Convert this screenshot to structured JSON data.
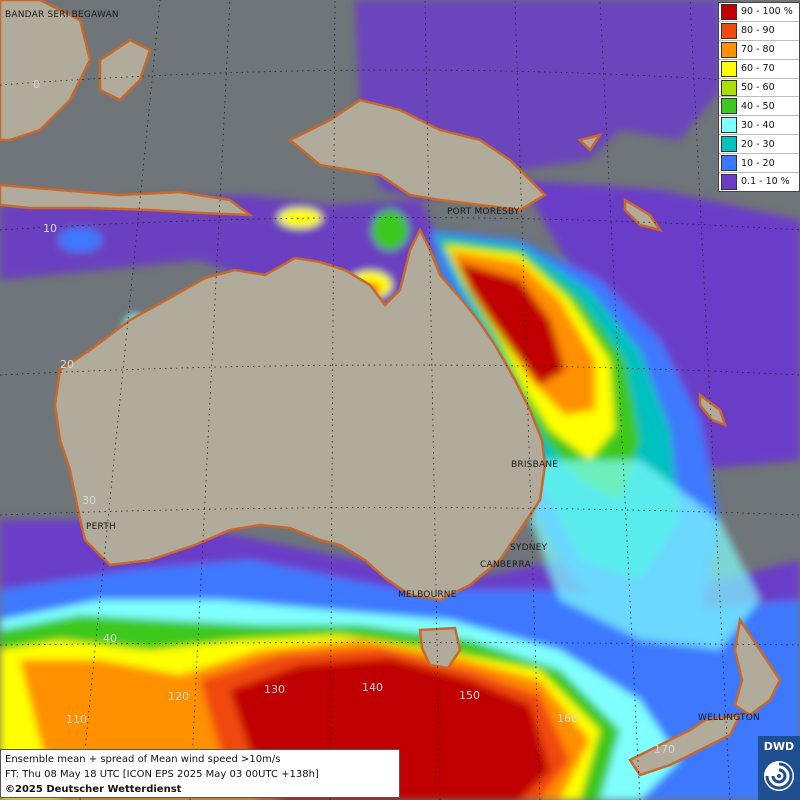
{
  "colors": {
    "ocean": "#6f7579",
    "land": "#b0ab9a",
    "coast": "#c8682a",
    "bins": [
      "#c00000",
      "#e83410",
      "#ff8000",
      "#ffd000",
      "#f5f500",
      "#52c81f",
      "#16b02a",
      "#57fff0",
      "#00c8c8",
      "#3c78ff",
      "#6a3cc8"
    ]
  },
  "legend": [
    {
      "label": "90 - 100 %",
      "color": "#c00000"
    },
    {
      "label": "80 - 90",
      "color": "#f04a10"
    },
    {
      "label": "70 - 80",
      "color": "#ff9000"
    },
    {
      "label": "60 - 70",
      "color": "#ffff00"
    },
    {
      "label": "50 - 60",
      "color": "#a8e000"
    },
    {
      "label": "40 - 50",
      "color": "#3cc81e"
    },
    {
      "label": "30 - 40",
      "color": "#80ffff"
    },
    {
      "label": "20 - 30",
      "color": "#00c0c0"
    },
    {
      "label": "10 - 20",
      "color": "#3c78ff"
    },
    {
      "label": "0.1 - 10 %",
      "color": "#6a3cc8"
    }
  ],
  "cities": {
    "bandar": "BANDAR SERI BEGAWAN",
    "port_moresby": "PORT MORESBY",
    "brisbane": "BRISBANE",
    "perth": "PERTH",
    "sydney": "SYDNEY",
    "canberra": "CANBERRA",
    "melbourne": "MELBOURNE",
    "wellington": "WELLINGTON"
  },
  "grid_labels": {
    "lat0": "0",
    "lat10": "10",
    "lat20": "20",
    "lat30": "30",
    "lat40": "40",
    "lon110": "110",
    "lon120": "120",
    "lon130": "130",
    "lon140": "140",
    "lon150": "150",
    "lon160": "160",
    "lon170": "170"
  },
  "info": {
    "line1": "Ensemble mean + spread of Mean wind speed >10m/s",
    "line2": "FT: Thu 08 May 18 UTC [ICON EPS 2025 May 03 00UTC +138h]",
    "line3": "©2025 Deutscher Wetterdienst"
  },
  "logo_text": "DWD"
}
